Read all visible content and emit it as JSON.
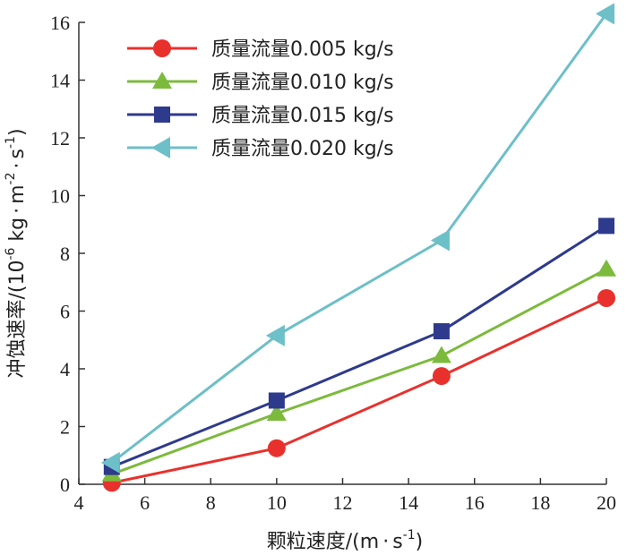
{
  "chart_data": {
    "type": "line",
    "title": "",
    "xlabel": "颗粒速度/(m·s⁻¹)",
    "xlabel_main": "颗粒速度/(m",
    "xlabel_sep": "·",
    "xlabel_unit": "s",
    "xlabel_exp": "-1",
    "xlabel_close": ")",
    "ylabel": "冲蚀速率/(10⁻⁶ kg·m⁻²·s⁻¹)",
    "ylabel_main": "冲蚀速率/(10",
    "ylabel_exp1": "-6",
    "ylabel_kg": " kg",
    "ylabel_sep1": "·",
    "ylabel_m": "m",
    "ylabel_exp2": "-2",
    "ylabel_sep2": "·",
    "ylabel_s": "s",
    "ylabel_exp3": "-1",
    "ylabel_close": ")",
    "xlim": [
      4,
      20
    ],
    "ylim": [
      0,
      16
    ],
    "xticks": [
      4,
      6,
      8,
      10,
      12,
      14,
      16,
      18,
      20
    ],
    "yticks": [
      0,
      2,
      4,
      6,
      8,
      10,
      12,
      14,
      16
    ],
    "grid": false,
    "legend_position": "top-left",
    "series": [
      {
        "name": "质量流量0.005 kg/s",
        "color": "#e8312d",
        "marker": "circle",
        "x": [
          5,
          10,
          15,
          20
        ],
        "y": [
          0.05,
          1.25,
          3.75,
          6.45
        ]
      },
      {
        "name": "质量流量0.010 kg/s",
        "color": "#7cba3c",
        "marker": "triangle-up",
        "x": [
          5,
          10,
          15,
          20
        ],
        "y": [
          0.35,
          2.45,
          4.45,
          7.45
        ]
      },
      {
        "name": "质量流量0.015 kg/s",
        "color": "#2e3a8c",
        "marker": "square",
        "x": [
          5,
          10,
          15,
          20
        ],
        "y": [
          0.6,
          2.9,
          5.3,
          8.95
        ]
      },
      {
        "name": "质量流量0.020 kg/s",
        "color": "#6dbfc8",
        "marker": "triangle-left",
        "x": [
          5,
          10,
          15,
          20
        ],
        "y": [
          0.75,
          5.15,
          8.45,
          16.3
        ]
      }
    ]
  }
}
